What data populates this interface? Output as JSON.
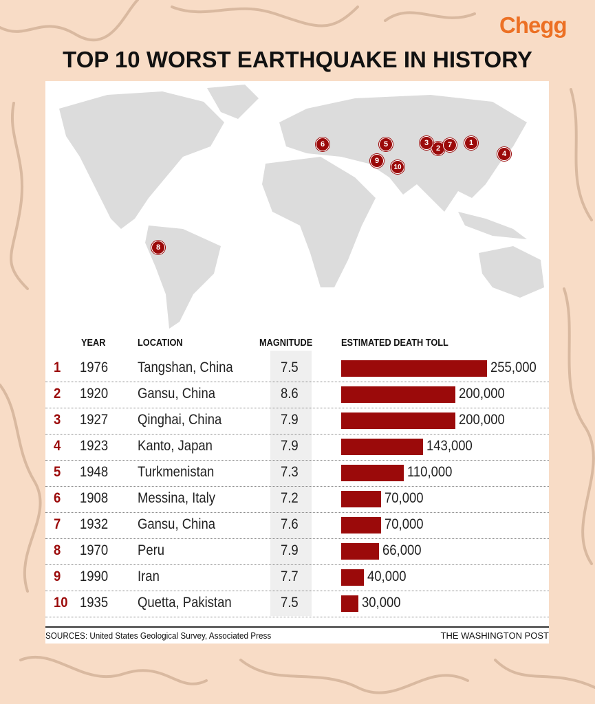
{
  "brand": "Chegg",
  "title": "TOP 10 WORST EARTHQUAKE IN HISTORY",
  "colors": {
    "background": "#f8dcc6",
    "bar": "#9b0a0a",
    "brand": "#ec7024"
  },
  "chart_data": {
    "type": "bar",
    "title": "TOP 10 WORST EARTHQUAKE IN HISTORY",
    "columns": [
      "YEAR",
      "LOCATION",
      "MAGNITUDE",
      "ESTIMATED DEATH TOLL"
    ],
    "rows": [
      {
        "rank": "1",
        "year": "1976",
        "location": "Tangshan, China",
        "magnitude": "7.5",
        "deaths": 255000,
        "label": "255,000"
      },
      {
        "rank": "2",
        "year": "1920",
        "location": "Gansu, China",
        "magnitude": "8.6",
        "deaths": 200000,
        "label": "200,000"
      },
      {
        "rank": "3",
        "year": "1927",
        "location": "Qinghai, China",
        "magnitude": "7.9",
        "deaths": 200000,
        "label": "200,000"
      },
      {
        "rank": "4",
        "year": "1923",
        "location": "Kanto, Japan",
        "magnitude": "7.9",
        "deaths": 143000,
        "label": "143,000"
      },
      {
        "rank": "5",
        "year": "1948",
        "location": "Turkmenistan",
        "magnitude": "7.3",
        "deaths": 110000,
        "label": "110,000"
      },
      {
        "rank": "6",
        "year": "1908",
        "location": "Messina, Italy",
        "magnitude": "7.2",
        "deaths": 70000,
        "label": "70,000"
      },
      {
        "rank": "7",
        "year": "1932",
        "location": "Gansu, China",
        "magnitude": "7.6",
        "deaths": 70000,
        "label": "70,000"
      },
      {
        "rank": "8",
        "year": "1970",
        "location": "Peru",
        "magnitude": "7.9",
        "deaths": 66000,
        "label": "66,000"
      },
      {
        "rank": "9",
        "year": "1990",
        "location": "Iran",
        "magnitude": "7.7",
        "deaths": 40000,
        "label": "40,000"
      },
      {
        "rank": "10",
        "year": "1935",
        "location": "Quetta, Pakistan",
        "magnitude": "7.5",
        "deaths": 30000,
        "label": "30,000"
      }
    ],
    "xlim": [
      0,
      255000
    ]
  },
  "map_markers": [
    "1",
    "2",
    "3",
    "4",
    "5",
    "6",
    "7",
    "8",
    "9",
    "10"
  ],
  "footer": {
    "sources": "SOURCES: United States Geological Survey, Associated Press",
    "credit": "THE WASHINGTON POST"
  }
}
